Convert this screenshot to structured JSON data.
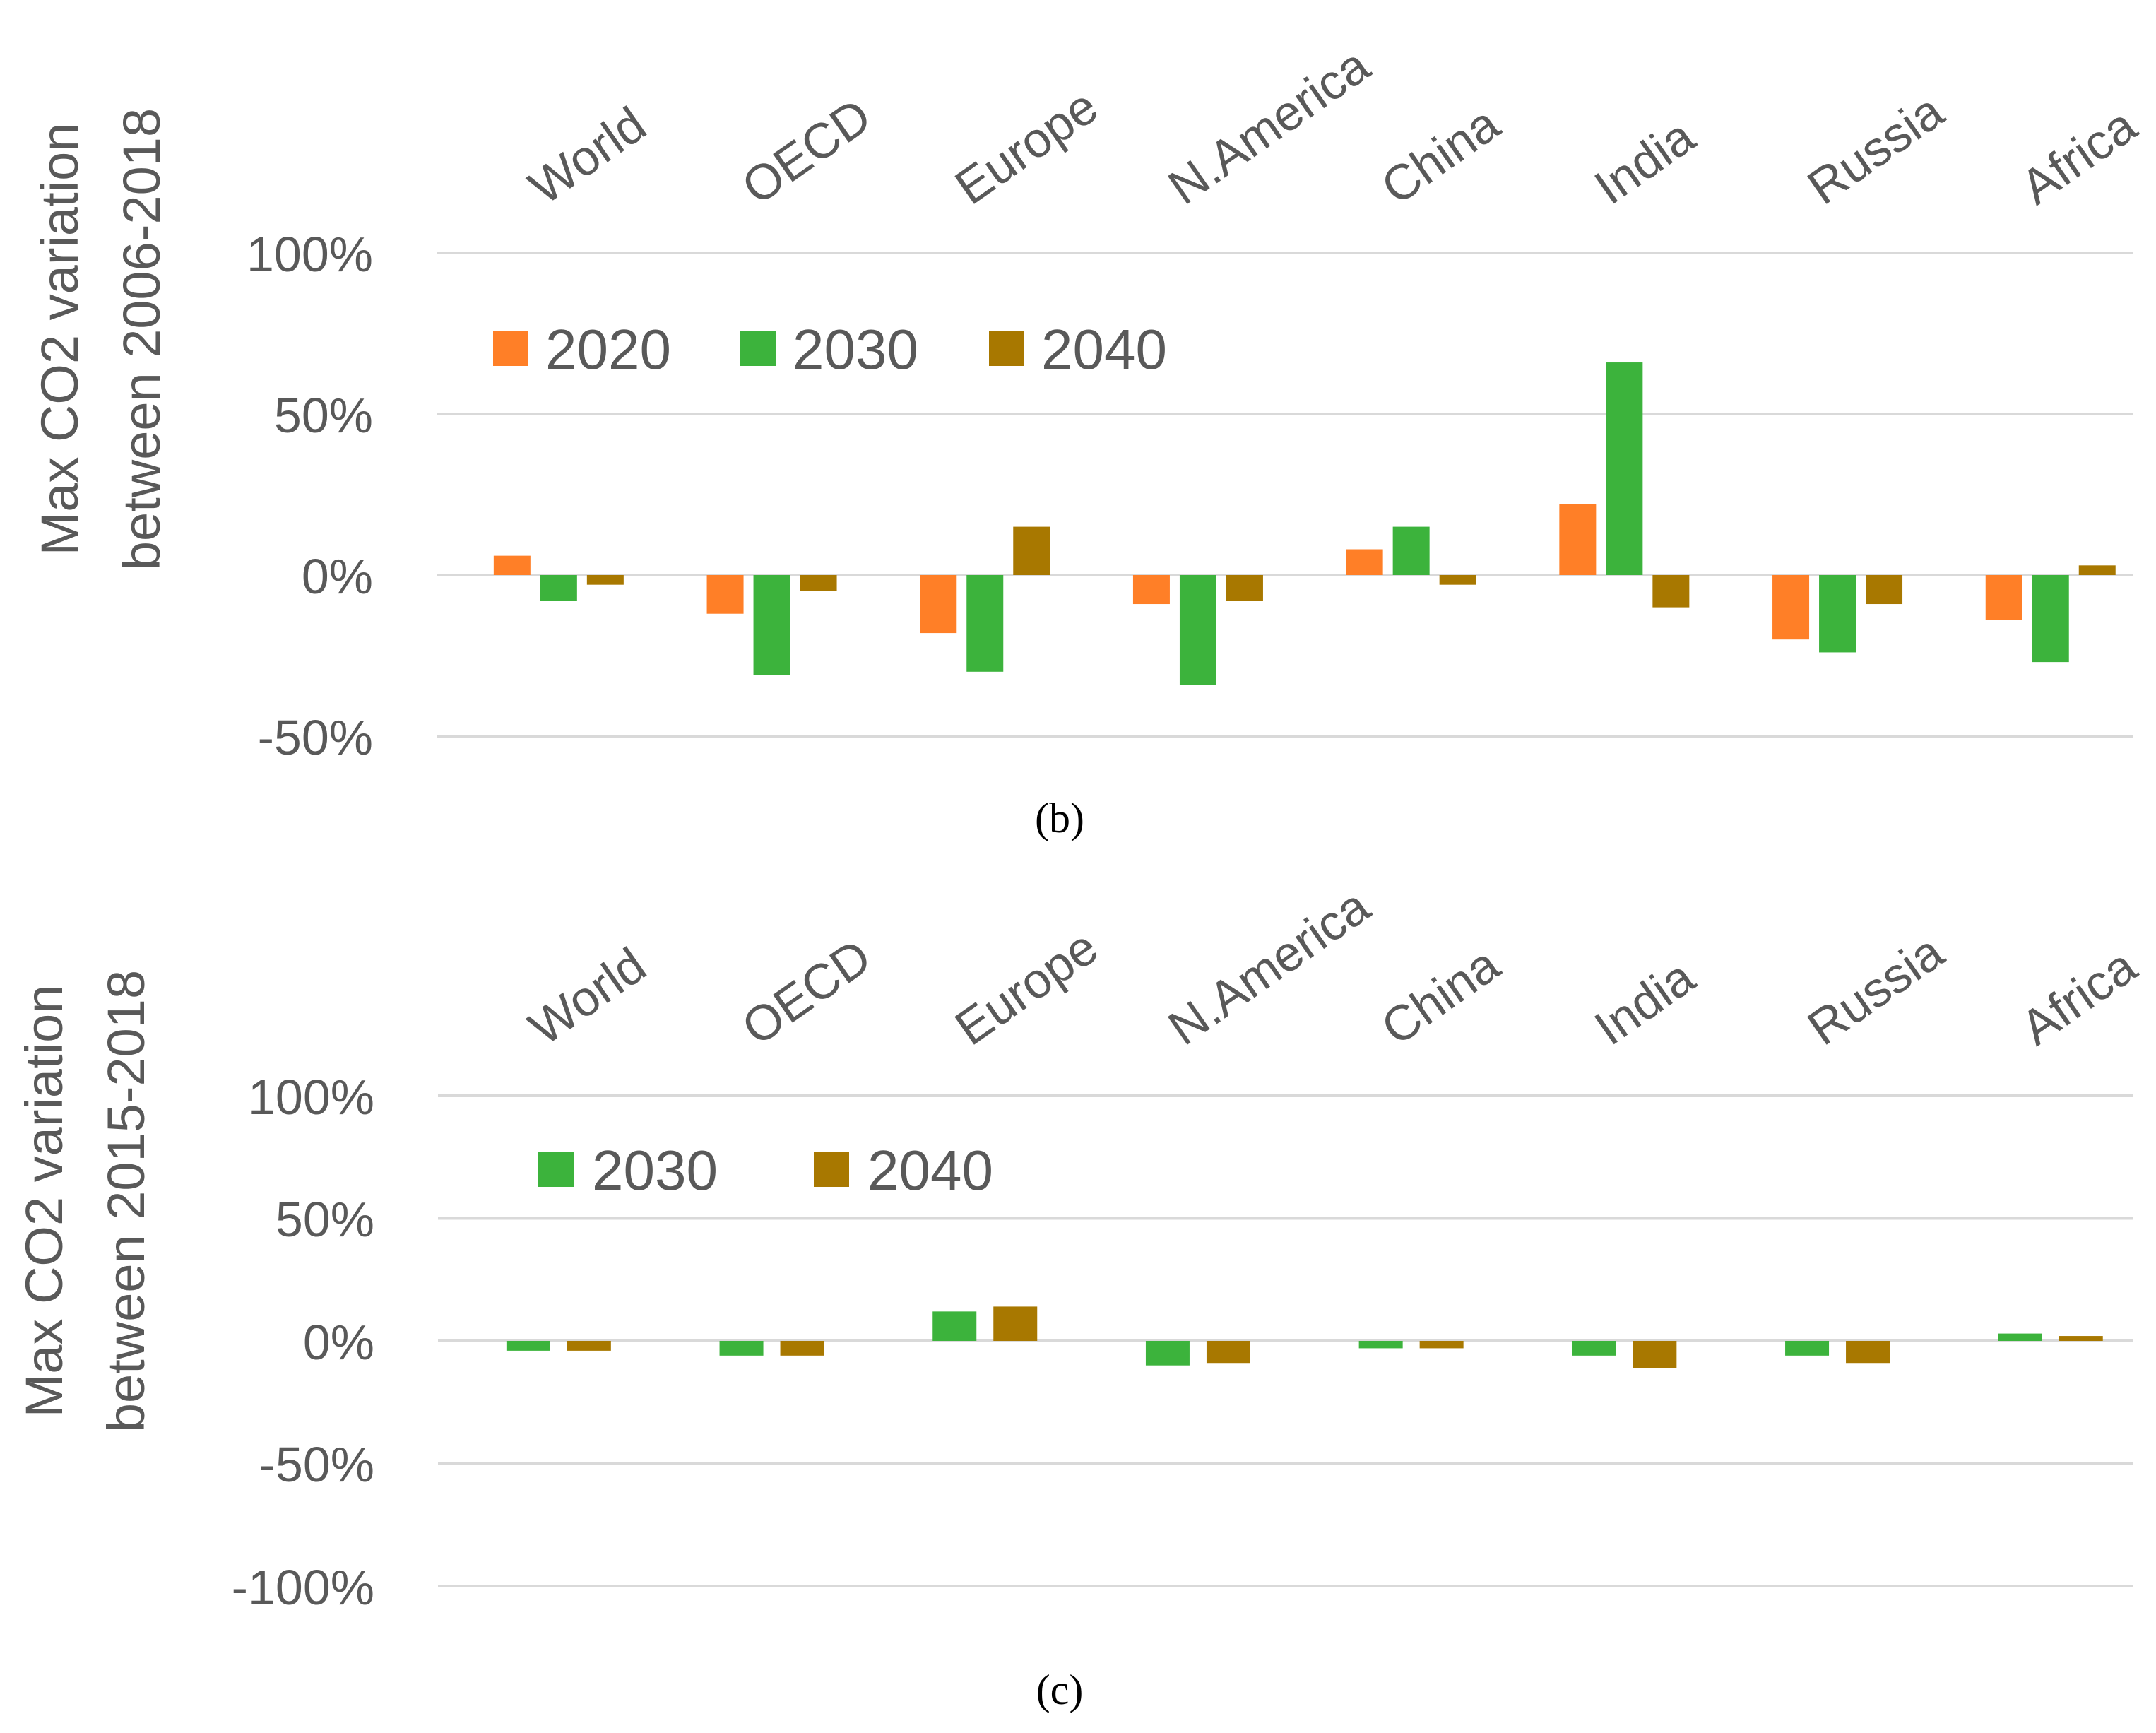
{
  "chart_data": [
    {
      "type": "bar",
      "panel_label": "(b)",
      "ylabel": [
        "Max CO2 variation",
        "between 2006-2018"
      ],
      "ylim": [
        -50,
        100
      ],
      "yticks": [
        100,
        50,
        0,
        -50
      ],
      "ytick_labels": [
        "100%",
        "50%",
        "0%",
        "-50%"
      ],
      "categories": [
        "World",
        "OECD",
        "Europe",
        "N.America",
        "China",
        "India",
        "Russia",
        "Africa"
      ],
      "legend_position": "top-left",
      "series": [
        {
          "name": "2020",
          "color": "#ff7f27",
          "values": [
            6,
            -12,
            -18,
            -9,
            8,
            22,
            -20,
            -14
          ]
        },
        {
          "name": "2030",
          "color": "#3cb33c",
          "values": [
            -8,
            -31,
            -30,
            -34,
            15,
            66,
            -24,
            -27
          ]
        },
        {
          "name": "2040",
          "color": "#a87800",
          "values": [
            -3,
            -5,
            15,
            -8,
            -3,
            -10,
            -9,
            3
          ]
        }
      ]
    },
    {
      "type": "bar",
      "panel_label": "(c)",
      "ylabel": [
        "Max CO2 variation",
        "between 2015-2018"
      ],
      "ylim": [
        -100,
        100
      ],
      "yticks": [
        100,
        50,
        0,
        -50,
        -100
      ],
      "ytick_labels": [
        "100%",
        "50%",
        "0%",
        "-50%",
        "-100%"
      ],
      "categories": [
        "World",
        "OECD",
        "Europe",
        "N.America",
        "China",
        "India",
        "Russia",
        "Africa"
      ],
      "legend_position": "top-left",
      "series": [
        {
          "name": "2030",
          "color": "#3cb33c",
          "values": [
            -4,
            -6,
            12,
            -10,
            -3,
            -6,
            -6,
            3
          ]
        },
        {
          "name": "2040",
          "color": "#a87800",
          "values": [
            -4,
            -6,
            14,
            -9,
            -3,
            -11,
            -9,
            2
          ]
        }
      ]
    }
  ]
}
